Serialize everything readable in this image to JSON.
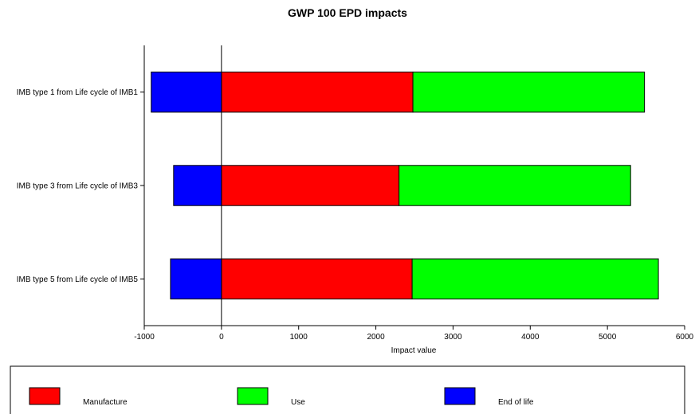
{
  "chart_data": {
    "type": "bar",
    "orientation": "horizontal",
    "stacked": true,
    "title": "GWP 100 EPD impacts",
    "xlabel": "Impact value",
    "ylabel": "",
    "xlim": [
      -1000,
      6000
    ],
    "xticks": [
      -1000,
      0,
      1000,
      2000,
      3000,
      4000,
      5000,
      6000
    ],
    "grid": false,
    "legend_position": "bottom",
    "categories": [
      "IMB type 1 from Life cycle of IMB1",
      "IMB type 3 from Life cycle of IMB3",
      "IMB type 5 from Life cycle of IMB5"
    ],
    "series": [
      {
        "name": "Manufacture",
        "color": "#ff0000",
        "values": [
          2480,
          2300,
          2470
        ]
      },
      {
        "name": "Use",
        "color": "#00ff00",
        "values": [
          3000,
          3000,
          3190
        ]
      },
      {
        "name": "End of life",
        "color": "#0000ff",
        "values": [
          -910,
          -620,
          -660
        ]
      }
    ]
  }
}
